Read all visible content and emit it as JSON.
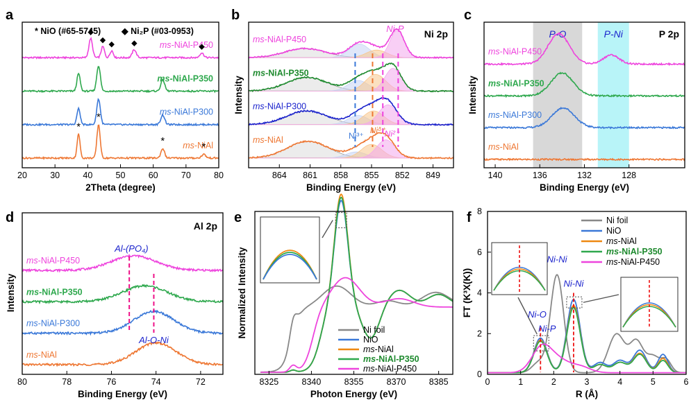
{
  "figure": {
    "description_panels": [
      "a",
      "b",
      "c",
      "d",
      "e",
      "f"
    ]
  },
  "chart_data": [
    {
      "id": "a",
      "type": "line",
      "panel_label": "a",
      "title": "",
      "xlabel": "2Theta (degree)",
      "ylabel": "",
      "xlim": [
        20,
        80
      ],
      "xticks": [
        20,
        30,
        40,
        50,
        60,
        70,
        80
      ],
      "legend": [
        {
          "marker": "*",
          "text": "NiO (#65-5745)"
        },
        {
          "marker": "◆",
          "text": "Ni₂P (#03-0953)"
        }
      ],
      "series": [
        {
          "name": "ms-NiAl-P450",
          "label_prefix": "ms",
          "label_suffix": "-NiAl-P450",
          "color": "#ee44dd",
          "bold": false,
          "offset": 3.0,
          "peaks": [
            [
              40.9,
              0.6,
              0.55
            ],
            [
              44.6,
              0.35,
              0.5
            ],
            [
              47.3,
              0.22,
              0.5
            ],
            [
              54.2,
              0.25,
              0.6
            ],
            [
              74.8,
              0.15,
              0.6
            ]
          ]
        },
        {
          "name": "ms-NiAl-P350",
          "label_prefix": "ms",
          "label_suffix": "-NiAl-P350",
          "color": "#2ea84d",
          "bold": true,
          "offset": 2.0,
          "peaks": [
            [
              37.2,
              0.55,
              0.5
            ],
            [
              43.3,
              0.8,
              0.55
            ],
            [
              62.9,
              0.35,
              0.6
            ]
          ]
        },
        {
          "name": "ms-NiAl-P300",
          "label_prefix": "ms",
          "label_suffix": "-NiAl-P300",
          "color": "#3a78d8",
          "bold": false,
          "offset": 1.0,
          "peaks": [
            [
              37.2,
              0.5,
              0.5
            ],
            [
              43.3,
              0.8,
              0.55
            ],
            [
              62.9,
              0.3,
              0.6
            ]
          ]
        },
        {
          "name": "ms-NiAl",
          "label_prefix": "ms",
          "label_suffix": "-NiAl",
          "color": "#ee7733",
          "bold": false,
          "offset": 0.0,
          "peaks": [
            [
              37.2,
              0.75,
              0.45
            ],
            [
              43.3,
              1.05,
              0.5
            ],
            [
              62.9,
              0.3,
              0.55
            ],
            [
              75.4,
              0.12,
              0.6
            ]
          ]
        }
      ],
      "markers": [
        {
          "series": "ms-NiAl-P450",
          "symbol": "◆",
          "x": [
            40.9,
            44.6,
            47.3,
            54.2,
            74.8
          ]
        },
        {
          "series": "ms-NiAl",
          "symbol": "*",
          "x": [
            37.2,
            43.3,
            62.9,
            75.4
          ]
        }
      ]
    },
    {
      "id": "b",
      "type": "line",
      "panel_label": "b",
      "title": "Ni 2p",
      "xlabel": "Binding Energy (eV)",
      "ylabel": "Intensity",
      "xlim": [
        867,
        847
      ],
      "xticks": [
        864,
        861,
        858,
        855,
        852,
        849
      ],
      "annotations": [
        {
          "text": "Ni-P",
          "color": "#ee44dd",
          "x": 852.7
        },
        {
          "text": "Ni³⁺",
          "color": "#3a78d8",
          "x": 856.5
        },
        {
          "text": "Niᵟ⁺",
          "color": "#ee7733",
          "x": 854.4
        },
        {
          "text": "Ni²⁺",
          "color": "#ee44dd",
          "x": 853.0
        }
      ],
      "reference_lines": [
        {
          "x": 856.6,
          "color": "#3a78d8"
        },
        {
          "x": 854.9,
          "color": "#ee7733"
        },
        {
          "x": 853.9,
          "color": "#ee44dd"
        },
        {
          "x": 852.4,
          "color": "#ee44dd"
        }
      ],
      "series": [
        {
          "name": "ms-NiAl-P450",
          "label_prefix": "ms",
          "label_suffix": "-NiAl-P450",
          "color": "#ee44dd",
          "bold": false,
          "offset": 3.0,
          "peaks": [
            [
              861.5,
              0.3,
              2.0
            ],
            [
              856.2,
              0.45,
              1.0
            ],
            [
              854.5,
              0.25,
              1.0
            ],
            [
              852.5,
              0.9,
              0.7
            ]
          ]
        },
        {
          "name": "ms-NiAl-P350",
          "label_prefix": "ms",
          "label_suffix": "-NiAl-P350",
          "color": "#1e8a2e",
          "bold": true,
          "offset": 2.0,
          "peaks": [
            [
              861.3,
              0.45,
              2.0
            ],
            [
              856.3,
              0.35,
              1.0
            ],
            [
              854.6,
              0.55,
              1.0
            ],
            [
              852.9,
              0.75,
              0.8
            ]
          ]
        },
        {
          "name": "ms-NiAl-P300",
          "label_prefix": "ms",
          "label_suffix": "-NiAl-P300",
          "color": "#1a22cc",
          "bold": false,
          "offset": 1.0,
          "peaks": [
            [
              861.3,
              0.45,
              2.0
            ],
            [
              856.3,
              0.3,
              1.0
            ],
            [
              854.8,
              0.45,
              1.0
            ],
            [
              853.4,
              0.65,
              0.9
            ]
          ]
        },
        {
          "name": "ms-NiAl",
          "label_prefix": "ms",
          "label_suffix": "-NiAl",
          "color": "#ee7733",
          "bold": false,
          "offset": 0.0,
          "peaks": [
            [
              861.2,
              0.55,
              2.0
            ],
            [
              856.5,
              0.2,
              1.0
            ],
            [
              855.0,
              0.45,
              1.0
            ],
            [
              853.6,
              0.6,
              0.9
            ]
          ]
        }
      ]
    },
    {
      "id": "c",
      "type": "line",
      "panel_label": "c",
      "title": "P 2p",
      "xlabel": "Binding Energy (eV)",
      "ylabel": "Intensity",
      "xlim": [
        141,
        123
      ],
      "xticks": [
        140,
        136,
        132,
        128
      ],
      "bands": [
        {
          "from": 136.6,
          "to": 132.2,
          "color": "#d8d8d8",
          "label": "P-O",
          "label_color": "#1a22cc"
        },
        {
          "from": 130.8,
          "to": 128.0,
          "color": "#b8f4f8",
          "label": "P-Ni",
          "label_color": "#1a22cc"
        }
      ],
      "series": [
        {
          "name": "ms-NiAl-P450",
          "label_prefix": "ms",
          "label_suffix": "-NiAl-P450",
          "color": "#ee44dd",
          "bold": false,
          "offset": 3.0,
          "peaks": [
            [
              134.3,
              1.0,
              0.95
            ],
            [
              129.6,
              0.3,
              0.7
            ]
          ]
        },
        {
          "name": "ms-NiAl-P350",
          "label_prefix": "ms",
          "label_suffix": "-NiAl-P350",
          "color": "#2ea84d",
          "bold": true,
          "offset": 2.0,
          "peaks": [
            [
              134.0,
              0.75,
              1.0
            ]
          ]
        },
        {
          "name": "ms-NiAl-P300",
          "label_prefix": "ms",
          "label_suffix": "-NiAl-P300",
          "color": "#3a78d8",
          "bold": false,
          "offset": 1.0,
          "peaks": [
            [
              133.9,
              0.65,
              1.0
            ]
          ]
        },
        {
          "name": "ms-NiAl",
          "label_prefix": "ms",
          "label_suffix": "-NiAl",
          "color": "#ee7733",
          "bold": false,
          "offset": 0.0,
          "peaks": []
        }
      ]
    },
    {
      "id": "d",
      "type": "line",
      "panel_label": "d",
      "title": "Al 2p",
      "xlabel": "Binding Energy (eV)",
      "ylabel": "Intensity",
      "xlim": [
        80,
        71
      ],
      "xticks": [
        80,
        78,
        76,
        74,
        72
      ],
      "annotations": [
        {
          "text": "Al-(PO₄)",
          "color": "#1a22cc",
          "x": 75.1
        },
        {
          "text": "Al-O-Ni",
          "color": "#1a22cc",
          "x": 74.1
        }
      ],
      "reference_lines": [
        {
          "x": 75.2,
          "color": "#ee1188"
        },
        {
          "x": 74.1,
          "color": "#ee1188"
        }
      ],
      "series": [
        {
          "name": "ms-NiAl-P450",
          "label_prefix": "ms",
          "label_suffix": "-NiAl-P450",
          "color": "#ee44dd",
          "bold": false,
          "offset": 3.0,
          "peaks": [
            [
              75.0,
              0.5,
              1.0
            ]
          ]
        },
        {
          "name": "ms-NiAl-P350",
          "label_prefix": "ms",
          "label_suffix": "-NiAl-P350",
          "color": "#2ea84d",
          "bold": true,
          "offset": 2.0,
          "peaks": [
            [
              74.5,
              0.55,
              1.0
            ]
          ]
        },
        {
          "name": "ms-NiAl-P300",
          "label_prefix": "ms",
          "label_suffix": "-NiAl-P300",
          "color": "#3a78d8",
          "bold": false,
          "offset": 1.0,
          "peaks": [
            [
              74.1,
              0.75,
              0.9
            ]
          ]
        },
        {
          "name": "ms-NiAl",
          "label_prefix": "ms",
          "label_suffix": "-NiAl",
          "color": "#ee7733",
          "bold": false,
          "offset": 0.0,
          "peaks": [
            [
              74.0,
              0.75,
              0.9
            ]
          ]
        }
      ]
    },
    {
      "id": "e",
      "type": "line",
      "panel_label": "e",
      "title": "",
      "xlabel": "Photon Energy (eV)",
      "ylabel": "Normalized Intensity",
      "xlim": [
        8320,
        8390
      ],
      "ylim": [
        0,
        1.55
      ],
      "xticks": [
        8325,
        8340,
        8355,
        8370,
        8385
      ],
      "legend": [
        {
          "name": "Ni foil",
          "label_prefix": "",
          "label_suffix": "Ni foil",
          "color": "#888888",
          "bold": false
        },
        {
          "name": "NiO",
          "label_prefix": "",
          "label_suffix": "NiO",
          "color": "#3a78d8",
          "bold": false
        },
        {
          "name": "ms-NiAl",
          "label_prefix": "ms",
          "label_suffix": "-NiAl",
          "color": "#ee8811",
          "bold": false
        },
        {
          "name": "ms-NiAl-P350",
          "label_prefix": "ms",
          "label_suffix": "-NiAl-P350",
          "color": "#2ea84d",
          "bold": true
        },
        {
          "name": "ms-NiAl-P450",
          "label_prefix": "ms",
          "label_suffix": "-NiAl-P450",
          "color": "#ee44dd",
          "bold": false
        }
      ],
      "series": [
        {
          "name": "Ni foil",
          "color": "#888888",
          "edge": 8333.0,
          "wl": [
            [
              8349,
              0.2,
              5.0
            ],
            [
              8367,
              0.06,
              4.0
            ],
            [
              8384,
              0.14,
              5.0
            ]
          ],
          "pre": [
            8333.5,
            0.15,
            1.2
          ]
        },
        {
          "name": "NiO",
          "color": "#3a78d8",
          "edge": 8343.0,
          "wl": [
            [
              8350.5,
              1.02,
              2.4
            ],
            [
              8371,
              0.16,
              4.0
            ],
            [
              8385,
              0.12,
              4.0
            ]
          ],
          "pre": [
            8333.5,
            0.02,
            1.0
          ],
          "dip": [
            8361,
            0.3,
            3.0
          ]
        },
        {
          "name": "ms-NiAl",
          "color": "#ee8811",
          "edge": 8343.0,
          "wl": [
            [
              8350.5,
              1.08,
              2.4
            ],
            [
              8371,
              0.16,
              4.0
            ],
            [
              8385,
              0.12,
              4.0
            ]
          ],
          "pre": [
            8333.5,
            0.02,
            1.0
          ],
          "dip": [
            8361,
            0.3,
            3.0
          ]
        },
        {
          "name": "ms-NiAl-P350",
          "color": "#2ea84d",
          "edge": 8343.0,
          "wl": [
            [
              8350.5,
              1.05,
              2.4
            ],
            [
              8371,
              0.16,
              4.0
            ],
            [
              8385,
              0.12,
              4.0
            ]
          ],
          "pre": [
            8333.5,
            0.02,
            1.0
          ],
          "dip": [
            8361,
            0.3,
            3.0
          ]
        },
        {
          "name": "ms-NiAl-P450",
          "color": "#ee44dd",
          "edge": 8340.5,
          "wl": [
            [
              8352,
              0.28,
              5.0
            ],
            [
              8371,
              0.08,
              5.0
            ]
          ],
          "pre": [
            8333.5,
            0.06,
            1.2
          ]
        }
      ]
    },
    {
      "id": "f",
      "type": "line",
      "panel_label": "f",
      "title": "",
      "xlabel": "R (Å)",
      "ylabel": "FT (K³X(K))",
      "xlim": [
        0,
        6
      ],
      "ylim": [
        0,
        8
      ],
      "xticks": [
        0,
        1,
        2,
        3,
        4,
        5,
        6
      ],
      "yticks": [
        0,
        2,
        4,
        6,
        8
      ],
      "annotations": [
        {
          "text": "Ni-Ni",
          "color": "#1a22cc",
          "x": 2.1,
          "y": 5.5
        },
        {
          "text": "Ni-Ni",
          "color": "#1a22cc",
          "x": 2.6,
          "y": 4.3
        },
        {
          "text": "Ni-O",
          "color": "#1a22cc",
          "x": 1.5,
          "y": 2.8
        },
        {
          "text": "Ni-P",
          "color": "#1a22cc",
          "x": 1.8,
          "y": 2.1
        }
      ],
      "legend": [
        {
          "name": "Ni foil",
          "label_prefix": "",
          "label_suffix": "Ni foil",
          "color": "#888888",
          "bold": false
        },
        {
          "name": "NiO",
          "label_prefix": "",
          "label_suffix": "NiO",
          "color": "#3a78d8",
          "bold": false
        },
        {
          "name": "ms-NiAl",
          "label_prefix": "ms",
          "label_suffix": "-NiAl",
          "color": "#ee8811",
          "bold": false
        },
        {
          "name": "ms-NiAl-P350",
          "label_prefix": "ms",
          "label_suffix": "-NiAl-P350",
          "color": "#2ea84d",
          "bold": true
        },
        {
          "name": "ms-NiAl-P450",
          "label_prefix": "ms",
          "label_suffix": "-NiAl-P450",
          "color": "#ee44dd",
          "bold": false
        }
      ],
      "series": [
        {
          "name": "Ni foil",
          "color": "#888888",
          "peaks": [
            [
              2.1,
              4.8,
              0.2
            ],
            [
              1.55,
              0.5,
              0.2
            ],
            [
              3.9,
              1.9,
              0.25
            ],
            [
              4.5,
              1.5,
              0.2
            ],
            [
              5.0,
              0.8,
              0.2
            ],
            [
              5.4,
              0.6,
              0.15
            ]
          ]
        },
        {
          "name": "NiO",
          "color": "#3a78d8",
          "peaks": [
            [
              1.6,
              1.7,
              0.2
            ],
            [
              2.6,
              3.6,
              0.2
            ],
            [
              3.4,
              0.5,
              0.2
            ],
            [
              4.0,
              0.6,
              0.2
            ],
            [
              4.6,
              1.1,
              0.2
            ],
            [
              5.3,
              0.9,
              0.15
            ]
          ]
        },
        {
          "name": "ms-NiAl",
          "color": "#ee8811",
          "peaks": [
            [
              1.6,
              1.6,
              0.2
            ],
            [
              2.6,
              3.3,
              0.2
            ],
            [
              3.4,
              0.4,
              0.2
            ],
            [
              4.0,
              0.5,
              0.2
            ],
            [
              4.6,
              0.95,
              0.2
            ],
            [
              5.3,
              0.7,
              0.15
            ]
          ]
        },
        {
          "name": "ms-NiAl-P350",
          "color": "#2ea84d",
          "peaks": [
            [
              1.6,
              1.55,
              0.2
            ],
            [
              2.6,
              3.2,
              0.2
            ],
            [
              3.4,
              0.4,
              0.2
            ],
            [
              4.0,
              0.5,
              0.2
            ],
            [
              4.6,
              0.9,
              0.2
            ],
            [
              5.3,
              0.6,
              0.15
            ]
          ]
        },
        {
          "name": "ms-NiAl-P450",
          "color": "#ee44dd",
          "peaks": [
            [
              1.65,
              1.3,
              0.3
            ],
            [
              2.2,
              0.5,
              0.3
            ],
            [
              2.8,
              0.3,
              0.3
            ]
          ]
        }
      ]
    }
  ]
}
